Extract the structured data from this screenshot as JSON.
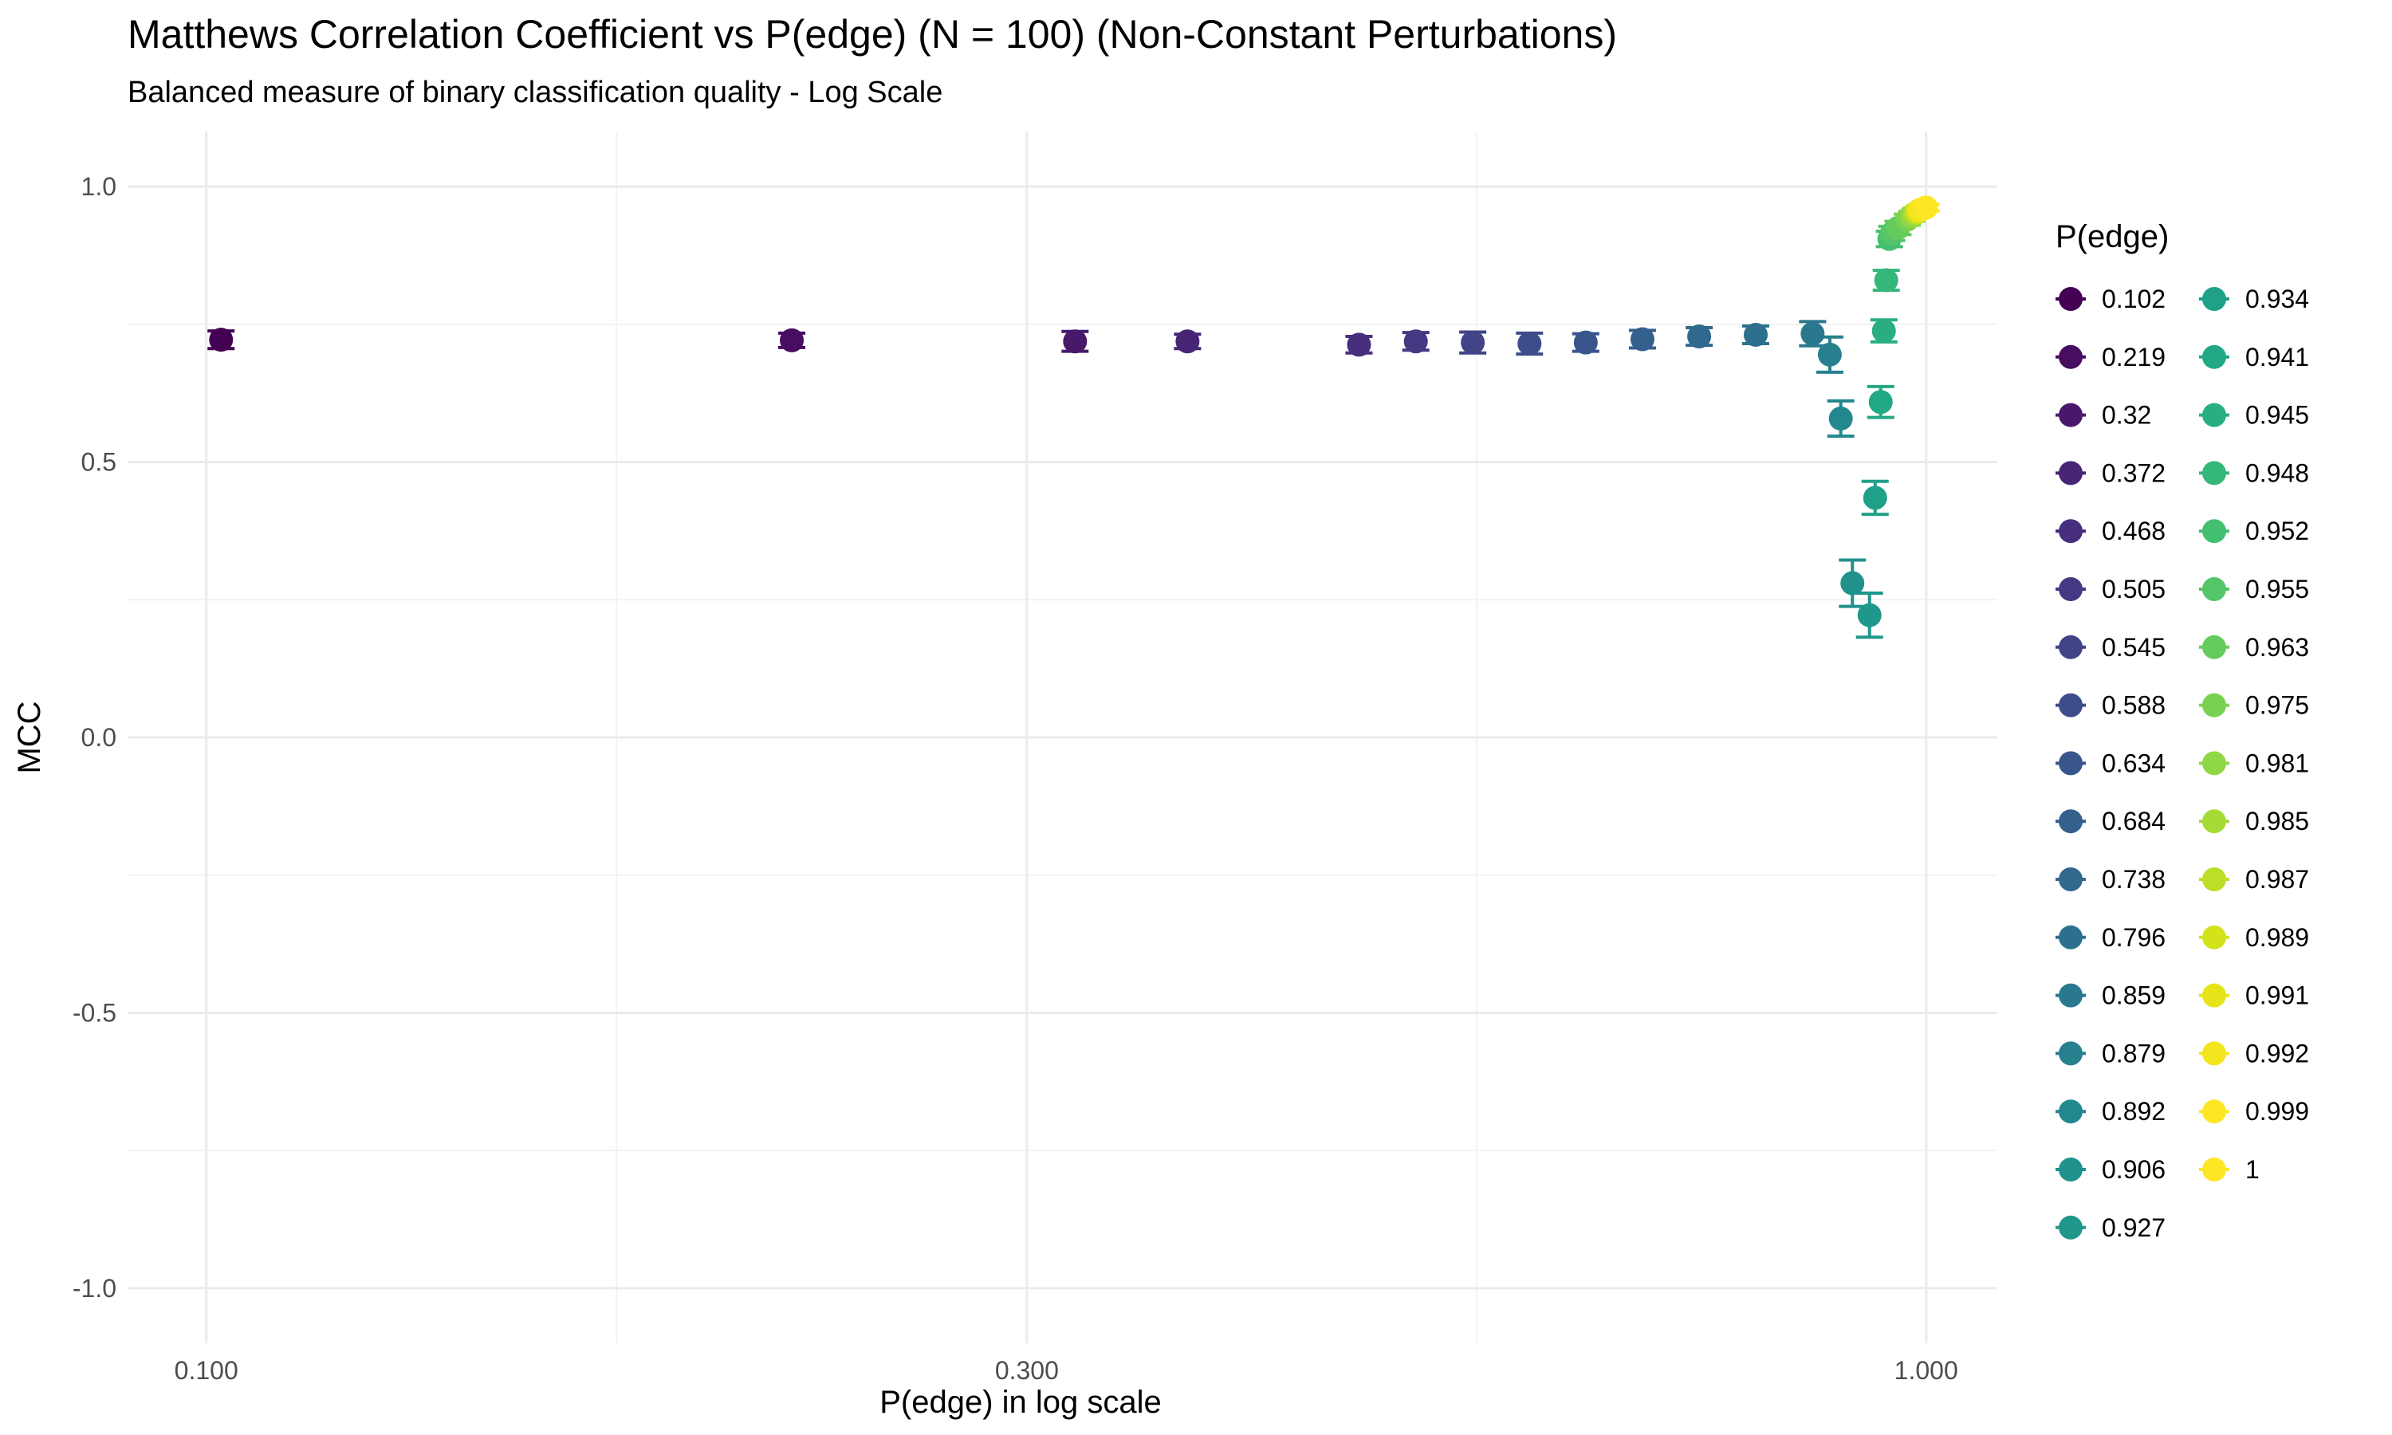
{
  "chart_data": {
    "type": "scatter",
    "title": "Matthews Correlation Coefficient vs P(edge) (N = 100) (Non-Constant Perturbations)",
    "subtitle": "Balanced measure of binary classification quality - Log Scale",
    "xlabel": "P(edge) in log scale",
    "ylabel": "MCC",
    "x_scale": "log10",
    "xlim": [
      0.09,
      1.1
    ],
    "ylim": [
      -1.1,
      1.1
    ],
    "x_ticks": [
      0.1,
      0.3,
      1.0
    ],
    "x_tick_labels": [
      "0.100",
      "0.300",
      "1.000"
    ],
    "y_ticks": [
      1.0,
      0.5,
      0.0,
      -0.5,
      -1.0
    ],
    "y_tick_labels": [
      "1.0",
      "0.5",
      "0.0",
      "-0.5",
      "-1.0"
    ],
    "grid": true,
    "error_bars": true,
    "legend": {
      "title": "P(edge)",
      "position": "right",
      "columns": 2
    },
    "series": [
      {
        "name": "0.102",
        "x": 0.102,
        "y": 0.722,
        "err": 0.016,
        "color": "#440154"
      },
      {
        "name": "0.219",
        "x": 0.219,
        "y": 0.721,
        "err": 0.013,
        "color": "#470d60"
      },
      {
        "name": "0.32",
        "x": 0.32,
        "y": 0.719,
        "err": 0.018,
        "color": "#48196b"
      },
      {
        "name": "0.372",
        "x": 0.372,
        "y": 0.719,
        "err": 0.013,
        "color": "#482475"
      },
      {
        "name": "0.468",
        "x": 0.468,
        "y": 0.713,
        "err": 0.015,
        "color": "#472f7d"
      },
      {
        "name": "0.505",
        "x": 0.505,
        "y": 0.719,
        "err": 0.016,
        "color": "#443983"
      },
      {
        "name": "0.545",
        "x": 0.545,
        "y": 0.717,
        "err": 0.019,
        "color": "#414487"
      },
      {
        "name": "0.588",
        "x": 0.588,
        "y": 0.715,
        "err": 0.019,
        "color": "#3d4d8a"
      },
      {
        "name": "0.634",
        "x": 0.634,
        "y": 0.717,
        "err": 0.016,
        "color": "#39568c"
      },
      {
        "name": "0.684",
        "x": 0.684,
        "y": 0.723,
        "err": 0.016,
        "color": "#355f8d"
      },
      {
        "name": "0.738",
        "x": 0.738,
        "y": 0.728,
        "err": 0.016,
        "color": "#31688e"
      },
      {
        "name": "0.796",
        "x": 0.796,
        "y": 0.731,
        "err": 0.016,
        "color": "#2d708e"
      },
      {
        "name": "0.859",
        "x": 0.859,
        "y": 0.733,
        "err": 0.022,
        "color": "#2a788e"
      },
      {
        "name": "0.879",
        "x": 0.879,
        "y": 0.695,
        "err": 0.032,
        "color": "#27808e"
      },
      {
        "name": "0.892",
        "x": 0.892,
        "y": 0.579,
        "err": 0.032,
        "color": "#23888e"
      },
      {
        "name": "0.906",
        "x": 0.906,
        "y": 0.28,
        "err": 0.042,
        "color": "#21918c"
      },
      {
        "name": "0.927",
        "x": 0.927,
        "y": 0.222,
        "err": 0.04,
        "color": "#1f988b"
      },
      {
        "name": "0.934",
        "x": 0.934,
        "y": 0.435,
        "err": 0.03,
        "color": "#1fa088"
      },
      {
        "name": "0.941",
        "x": 0.941,
        "y": 0.609,
        "err": 0.028,
        "color": "#22a884"
      },
      {
        "name": "0.945",
        "x": 0.945,
        "y": 0.738,
        "err": 0.02,
        "color": "#29af7f"
      },
      {
        "name": "0.948",
        "x": 0.948,
        "y": 0.83,
        "err": 0.018,
        "color": "#35b779"
      },
      {
        "name": "0.952",
        "x": 0.952,
        "y": 0.905,
        "err": 0.014,
        "color": "#43bf71"
      },
      {
        "name": "0.955",
        "x": 0.955,
        "y": 0.915,
        "err": 0.013,
        "color": "#54c568"
      },
      {
        "name": "0.963",
        "x": 0.963,
        "y": 0.925,
        "err": 0.012,
        "color": "#66cb5d"
      },
      {
        "name": "0.975",
        "x": 0.975,
        "y": 0.94,
        "err": 0.01,
        "color": "#7ad151"
      },
      {
        "name": "0.981",
        "x": 0.981,
        "y": 0.946,
        "err": 0.009,
        "color": "#8fd744"
      },
      {
        "name": "0.985",
        "x": 0.985,
        "y": 0.951,
        "err": 0.008,
        "color": "#a5db36"
      },
      {
        "name": "0.987",
        "x": 0.987,
        "y": 0.953,
        "err": 0.008,
        "color": "#bbdf27"
      },
      {
        "name": "0.989",
        "x": 0.989,
        "y": 0.955,
        "err": 0.007,
        "color": "#d2e21b"
      },
      {
        "name": "0.991",
        "x": 0.991,
        "y": 0.957,
        "err": 0.007,
        "color": "#e6e419"
      },
      {
        "name": "0.992",
        "x": 0.992,
        "y": 0.958,
        "err": 0.007,
        "color": "#f4e61e"
      },
      {
        "name": "0.999",
        "x": 0.999,
        "y": 0.962,
        "err": 0.006,
        "color": "#fde725"
      },
      {
        "name": "1",
        "x": 1.0,
        "y": 0.962,
        "err": 0.006,
        "color": "#fde725"
      }
    ]
  }
}
